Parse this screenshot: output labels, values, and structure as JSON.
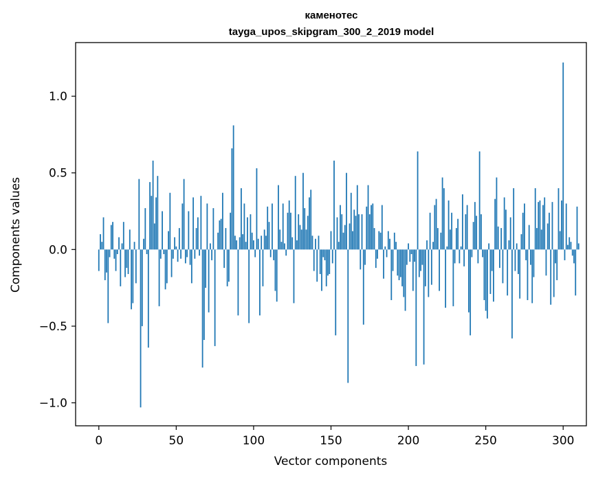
{
  "chart_data": {
    "type": "bar",
    "title": "каменотес",
    "subtitle": "tayga_upos_skipgram_300_2_2019 model",
    "xlabel": "Vector components",
    "ylabel": "Components values",
    "xlim": [
      -15,
      315
    ],
    "ylim": [
      -1.15,
      1.35
    ],
    "xticks": [
      0,
      50,
      100,
      150,
      200,
      250,
      300
    ],
    "yticks": [
      -1.0,
      -0.5,
      0.0,
      0.5,
      1.0
    ],
    "xtick_labels": [
      "0",
      "50",
      "100",
      "150",
      "200",
      "250",
      "300"
    ],
    "ytick_labels": [
      "−1.0",
      "−0.5",
      "0.0",
      "0.5",
      "1.0"
    ],
    "grid": false,
    "bar_color": "#1f77b4",
    "values": [
      -0.14,
      0.1,
      0.05,
      0.21,
      -0.2,
      -0.15,
      -0.48,
      -0.05,
      0.16,
      0.18,
      -0.06,
      -0.14,
      -0.03,
      0.08,
      -0.24,
      0.04,
      0.18,
      -0.18,
      -0.12,
      -0.16,
      0.13,
      -0.39,
      -0.35,
      0.05,
      -0.22,
      0.0,
      0.46,
      -1.03,
      -0.5,
      0.07,
      0.27,
      -0.03,
      -0.64,
      0.44,
      0.35,
      0.58,
      0.17,
      0.34,
      0.48,
      -0.37,
      -0.06,
      0.25,
      -0.03,
      -0.26,
      -0.22,
      0.12,
      0.37,
      -0.18,
      -0.06,
      0.08,
      0.02,
      -0.08,
      0.14,
      -0.06,
      0.3,
      0.46,
      -0.09,
      -0.05,
      0.25,
      -0.1,
      -0.22,
      0.34,
      -0.06,
      0.14,
      0.21,
      -0.04,
      0.35,
      -0.77,
      -0.59,
      -0.25,
      0.3,
      -0.41,
      0.04,
      -0.07,
      0.27,
      -0.63,
      0.0,
      0.11,
      0.19,
      0.2,
      0.37,
      -0.12,
      0.14,
      -0.24,
      -0.21,
      0.24,
      0.66,
      0.81,
      0.09,
      0.06,
      -0.43,
      0.08,
      0.4,
      0.1,
      0.3,
      0.05,
      0.21,
      -0.48,
      0.23,
      0.11,
      0.06,
      -0.05,
      0.53,
      0.07,
      -0.43,
      0.09,
      -0.24,
      0.13,
      0.09,
      0.28,
      0.18,
      -0.05,
      0.3,
      -0.07,
      -0.27,
      -0.34,
      0.42,
      0.13,
      0.05,
      0.3,
      0.04,
      -0.04,
      0.24,
      0.32,
      0.24,
      0.08,
      -0.35,
      0.48,
      0.06,
      0.23,
      0.16,
      0.13,
      0.5,
      0.27,
      0.13,
      0.22,
      0.34,
      0.39,
      0.09,
      -0.14,
      0.07,
      -0.21,
      0.09,
      -0.16,
      -0.27,
      -0.05,
      -0.07,
      -0.24,
      -0.17,
      -0.16,
      0.12,
      -0.09,
      0.58,
      -0.56,
      0.21,
      0.05,
      0.29,
      0.23,
      0.11,
      0.16,
      0.5,
      -0.87,
      0.17,
      0.37,
      0.12,
      0.26,
      0.22,
      0.42,
      0.23,
      -0.13,
      0.23,
      -0.49,
      -0.1,
      0.28,
      0.42,
      0.23,
      0.29,
      0.3,
      0.14,
      -0.12,
      -0.06,
      0.12,
      0.11,
      0.29,
      -0.19,
      0.02,
      -0.05,
      0.12,
      0.07,
      -0.33,
      -0.14,
      0.11,
      0.05,
      -0.17,
      -0.2,
      -0.18,
      -0.24,
      -0.31,
      -0.4,
      -0.1,
      0.04,
      -0.08,
      -0.03,
      -0.27,
      -0.08,
      -0.76,
      0.64,
      -0.18,
      -0.14,
      -0.1,
      -0.75,
      -0.24,
      0.06,
      -0.31,
      0.24,
      -0.23,
      0.05,
      0.29,
      0.33,
      0.14,
      -0.27,
      0.11,
      0.47,
      0.4,
      -0.38,
      0.02,
      0.32,
      0.13,
      0.24,
      -0.37,
      -0.09,
      0.14,
      0.2,
      -0.09,
      0.02,
      0.36,
      -0.11,
      0.23,
      0.29,
      -0.41,
      -0.56,
      -0.05,
      0.18,
      0.31,
      0.22,
      -0.09,
      0.64,
      0.23,
      -0.05,
      -0.33,
      -0.4,
      -0.45,
      0.04,
      -0.29,
      -0.14,
      -0.34,
      0.33,
      0.47,
      0.15,
      -0.12,
      0.14,
      -0.22,
      0.34,
      0.26,
      -0.3,
      0.06,
      0.21,
      -0.58,
      0.4,
      -0.14,
      0.04,
      -0.16,
      -0.32,
      0.1,
      0.24,
      0.3,
      -0.07,
      -0.33,
      0.16,
      -0.1,
      -0.35,
      -0.18,
      0.4,
      0.14,
      0.31,
      0.32,
      0.13,
      0.29,
      0.34,
      -0.17,
      0.17,
      0.24,
      -0.36,
      0.31,
      -0.31,
      -0.09,
      -0.2,
      0.4,
      0.12,
      0.32,
      1.22,
      -0.07,
      0.3,
      0.03,
      0.08,
      0.05,
      -0.04,
      -0.09,
      -0.3,
      0.28,
      0.04
    ]
  }
}
